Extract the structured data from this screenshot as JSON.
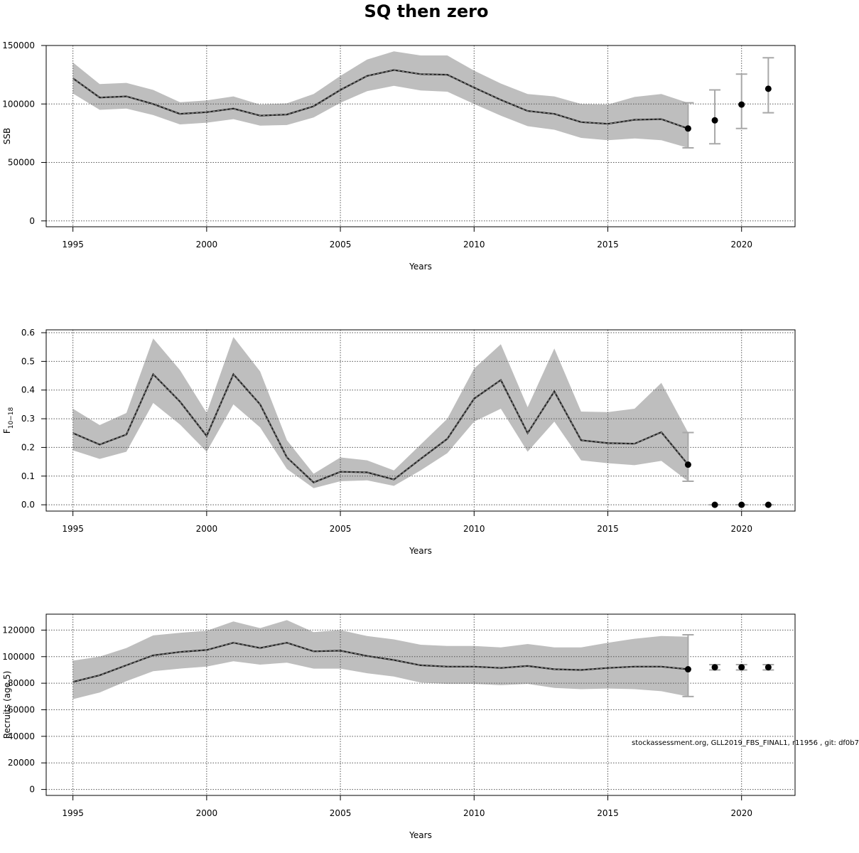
{
  "title": "SQ then zero",
  "footnote": "stockassessment.org, GLL2019_FBS_FINAL1, r11956 , git: df0b7",
  "colors": {
    "band": "#bebebe",
    "line": "#000000",
    "grid": "#555555",
    "errorbar": "#a8a8a8"
  },
  "chart_data": [
    {
      "type": "line",
      "xlabel": "Years",
      "ylabel": "SSB",
      "xlim": [
        1994,
        2022
      ],
      "ylim": [
        -5000,
        150000
      ],
      "xticks": [
        1995,
        2000,
        2005,
        2010,
        2015,
        2020
      ],
      "yticks": [
        0,
        50000,
        100000,
        150000
      ],
      "grid": true,
      "series": [
        {
          "x": [
            1995,
            1996,
            1997,
            1998,
            1999,
            2000,
            2001,
            2002,
            2003,
            2004,
            2005,
            2006,
            2007,
            2008,
            2009,
            2010,
            2011,
            2012,
            2013,
            2014,
            2015,
            2016,
            2017,
            2018
          ],
          "y": [
            122000,
            105500,
            106500,
            100000,
            91500,
            93000,
            96000,
            90000,
            91000,
            98000,
            112000,
            124000,
            129000,
            125500,
            125000,
            114000,
            103500,
            94000,
            91500,
            84500,
            83000,
            86500,
            87000,
            79000
          ],
          "lower": [
            109000,
            95000,
            96000,
            90500,
            82500,
            84000,
            87000,
            81500,
            82000,
            88500,
            101000,
            111000,
            115500,
            111500,
            110500,
            100000,
            90000,
            81000,
            78000,
            71000,
            69000,
            70500,
            69000,
            62500
          ],
          "upper": [
            135500,
            117000,
            118000,
            112000,
            101500,
            103000,
            106500,
            99500,
            100500,
            108500,
            124000,
            138000,
            145000,
            141500,
            141500,
            128500,
            117500,
            108500,
            106500,
            100000,
            99500,
            106000,
            108500,
            101000
          ]
        }
      ],
      "forecast": {
        "x": [
          2018,
          2019,
          2020,
          2021
        ],
        "y": [
          79000,
          86000,
          99500,
          113000
        ],
        "lower": [
          62500,
          66000,
          79000,
          92500
        ],
        "upper": [
          101000,
          112000,
          125500,
          139500
        ]
      }
    },
    {
      "type": "line",
      "xlabel": "Years",
      "ylabel": "F",
      "ylabel_sub": "10−18",
      "xlim": [
        1994,
        2022
      ],
      "ylim": [
        -0.022,
        0.61
      ],
      "xticks": [
        1995,
        2000,
        2005,
        2010,
        2015,
        2020
      ],
      "yticks": [
        0.0,
        0.1,
        0.2,
        0.3,
        0.4,
        0.5,
        0.6
      ],
      "ytick_labels": [
        "0.0",
        "0.1",
        "0.2",
        "0.3",
        "0.4",
        "0.5",
        "0.6"
      ],
      "grid": true,
      "series": [
        {
          "x": [
            1995,
            1996,
            1997,
            1998,
            1999,
            2000,
            2001,
            2002,
            2003,
            2004,
            2005,
            2006,
            2007,
            2008,
            2009,
            2010,
            2011,
            2012,
            2013,
            2014,
            2015,
            2016,
            2017,
            2018
          ],
          "y": [
            0.25,
            0.21,
            0.245,
            0.455,
            0.36,
            0.24,
            0.455,
            0.35,
            0.165,
            0.078,
            0.115,
            0.113,
            0.088,
            0.16,
            0.23,
            0.37,
            0.435,
            0.25,
            0.395,
            0.225,
            0.215,
            0.213,
            0.253,
            0.14
          ],
          "lower": [
            0.19,
            0.16,
            0.185,
            0.355,
            0.28,
            0.185,
            0.35,
            0.27,
            0.125,
            0.058,
            0.082,
            0.085,
            0.066,
            0.12,
            0.18,
            0.29,
            0.335,
            0.185,
            0.29,
            0.155,
            0.145,
            0.138,
            0.153,
            0.082
          ],
          "upper": [
            0.335,
            0.278,
            0.32,
            0.58,
            0.47,
            0.32,
            0.585,
            0.465,
            0.225,
            0.108,
            0.165,
            0.155,
            0.12,
            0.21,
            0.3,
            0.475,
            0.56,
            0.34,
            0.545,
            0.325,
            0.323,
            0.335,
            0.425,
            0.252
          ]
        }
      ],
      "forecast": {
        "x": [
          2018,
          2019,
          2020,
          2021
        ],
        "y": [
          0.14,
          0.0,
          0.0,
          0.0
        ],
        "lower": [
          0.082,
          0.0,
          0.0,
          0.0
        ],
        "upper": [
          0.252,
          0.0,
          0.0,
          0.0
        ]
      }
    },
    {
      "type": "line",
      "xlabel": "Years",
      "ylabel": "Recruits (age 5)",
      "xlim": [
        1994,
        2022
      ],
      "ylim": [
        -4500,
        132000
      ],
      "xticks": [
        1995,
        2000,
        2005,
        2010,
        2015,
        2020
      ],
      "yticks": [
        0,
        20000,
        40000,
        60000,
        80000,
        100000,
        120000
      ],
      "grid": true,
      "series": [
        {
          "x": [
            1995,
            1996,
            1997,
            1998,
            1999,
            2000,
            2001,
            2002,
            2003,
            2004,
            2005,
            2006,
            2007,
            2008,
            2009,
            2010,
            2011,
            2012,
            2013,
            2014,
            2015,
            2016,
            2017,
            2018
          ],
          "y": [
            81000,
            86000,
            93500,
            101000,
            103500,
            105000,
            110500,
            106500,
            110500,
            104000,
            104500,
            100500,
            97500,
            93500,
            92500,
            92500,
            91500,
            93000,
            90500,
            90000,
            91500,
            92500,
            92500,
            90500
          ],
          "lower": [
            68000,
            73000,
            81500,
            89000,
            91000,
            92500,
            96500,
            94000,
            95500,
            91000,
            91000,
            87500,
            85000,
            80500,
            79500,
            79500,
            78500,
            79500,
            76500,
            75500,
            76000,
            75500,
            74000,
            70000
          ],
          "upper": [
            97000,
            100000,
            106500,
            116000,
            118000,
            119500,
            126500,
            121500,
            127500,
            118500,
            120000,
            115500,
            113000,
            109000,
            108000,
            108000,
            107000,
            109500,
            107000,
            107000,
            110500,
            113500,
            115500,
            115000
          ]
        }
      ],
      "forecast": {
        "x": [
          2018,
          2019,
          2020,
          2021
        ],
        "y": [
          90500,
          92000,
          92000,
          92000
        ],
        "lower": [
          70000,
          90000,
          90000,
          90000
        ],
        "upper": [
          116500,
          94000,
          94000,
          94000
        ]
      }
    }
  ]
}
